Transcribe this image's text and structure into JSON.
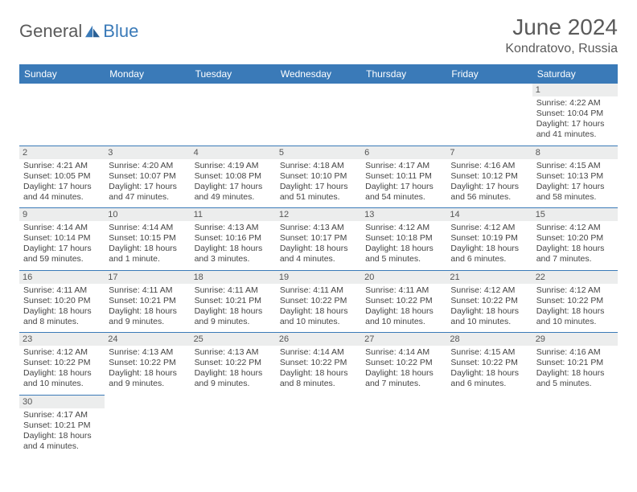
{
  "brand": {
    "part1": "General",
    "part2": "Blue"
  },
  "title": "June 2024",
  "location": "Kondratovo, Russia",
  "colors": {
    "header_bg": "#3a7ab8",
    "header_text": "#ffffff",
    "daynum_bg": "#eceded",
    "border": "#3a7ab8",
    "title_color": "#5a5a5a"
  },
  "weekdays": [
    "Sunday",
    "Monday",
    "Tuesday",
    "Wednesday",
    "Thursday",
    "Friday",
    "Saturday"
  ],
  "weeks": [
    [
      null,
      null,
      null,
      null,
      null,
      null,
      {
        "n": "1",
        "sr": "Sunrise: 4:22 AM",
        "ss": "Sunset: 10:04 PM",
        "dl": "Daylight: 17 hours and 41 minutes."
      }
    ],
    [
      {
        "n": "2",
        "sr": "Sunrise: 4:21 AM",
        "ss": "Sunset: 10:05 PM",
        "dl": "Daylight: 17 hours and 44 minutes."
      },
      {
        "n": "3",
        "sr": "Sunrise: 4:20 AM",
        "ss": "Sunset: 10:07 PM",
        "dl": "Daylight: 17 hours and 47 minutes."
      },
      {
        "n": "4",
        "sr": "Sunrise: 4:19 AM",
        "ss": "Sunset: 10:08 PM",
        "dl": "Daylight: 17 hours and 49 minutes."
      },
      {
        "n": "5",
        "sr": "Sunrise: 4:18 AM",
        "ss": "Sunset: 10:10 PM",
        "dl": "Daylight: 17 hours and 51 minutes."
      },
      {
        "n": "6",
        "sr": "Sunrise: 4:17 AM",
        "ss": "Sunset: 10:11 PM",
        "dl": "Daylight: 17 hours and 54 minutes."
      },
      {
        "n": "7",
        "sr": "Sunrise: 4:16 AM",
        "ss": "Sunset: 10:12 PM",
        "dl": "Daylight: 17 hours and 56 minutes."
      },
      {
        "n": "8",
        "sr": "Sunrise: 4:15 AM",
        "ss": "Sunset: 10:13 PM",
        "dl": "Daylight: 17 hours and 58 minutes."
      }
    ],
    [
      {
        "n": "9",
        "sr": "Sunrise: 4:14 AM",
        "ss": "Sunset: 10:14 PM",
        "dl": "Daylight: 17 hours and 59 minutes."
      },
      {
        "n": "10",
        "sr": "Sunrise: 4:14 AM",
        "ss": "Sunset: 10:15 PM",
        "dl": "Daylight: 18 hours and 1 minute."
      },
      {
        "n": "11",
        "sr": "Sunrise: 4:13 AM",
        "ss": "Sunset: 10:16 PM",
        "dl": "Daylight: 18 hours and 3 minutes."
      },
      {
        "n": "12",
        "sr": "Sunrise: 4:13 AM",
        "ss": "Sunset: 10:17 PM",
        "dl": "Daylight: 18 hours and 4 minutes."
      },
      {
        "n": "13",
        "sr": "Sunrise: 4:12 AM",
        "ss": "Sunset: 10:18 PM",
        "dl": "Daylight: 18 hours and 5 minutes."
      },
      {
        "n": "14",
        "sr": "Sunrise: 4:12 AM",
        "ss": "Sunset: 10:19 PM",
        "dl": "Daylight: 18 hours and 6 minutes."
      },
      {
        "n": "15",
        "sr": "Sunrise: 4:12 AM",
        "ss": "Sunset: 10:20 PM",
        "dl": "Daylight: 18 hours and 7 minutes."
      }
    ],
    [
      {
        "n": "16",
        "sr": "Sunrise: 4:11 AM",
        "ss": "Sunset: 10:20 PM",
        "dl": "Daylight: 18 hours and 8 minutes."
      },
      {
        "n": "17",
        "sr": "Sunrise: 4:11 AM",
        "ss": "Sunset: 10:21 PM",
        "dl": "Daylight: 18 hours and 9 minutes."
      },
      {
        "n": "18",
        "sr": "Sunrise: 4:11 AM",
        "ss": "Sunset: 10:21 PM",
        "dl": "Daylight: 18 hours and 9 minutes."
      },
      {
        "n": "19",
        "sr": "Sunrise: 4:11 AM",
        "ss": "Sunset: 10:22 PM",
        "dl": "Daylight: 18 hours and 10 minutes."
      },
      {
        "n": "20",
        "sr": "Sunrise: 4:11 AM",
        "ss": "Sunset: 10:22 PM",
        "dl": "Daylight: 18 hours and 10 minutes."
      },
      {
        "n": "21",
        "sr": "Sunrise: 4:12 AM",
        "ss": "Sunset: 10:22 PM",
        "dl": "Daylight: 18 hours and 10 minutes."
      },
      {
        "n": "22",
        "sr": "Sunrise: 4:12 AM",
        "ss": "Sunset: 10:22 PM",
        "dl": "Daylight: 18 hours and 10 minutes."
      }
    ],
    [
      {
        "n": "23",
        "sr": "Sunrise: 4:12 AM",
        "ss": "Sunset: 10:22 PM",
        "dl": "Daylight: 18 hours and 10 minutes."
      },
      {
        "n": "24",
        "sr": "Sunrise: 4:13 AM",
        "ss": "Sunset: 10:22 PM",
        "dl": "Daylight: 18 hours and 9 minutes."
      },
      {
        "n": "25",
        "sr": "Sunrise: 4:13 AM",
        "ss": "Sunset: 10:22 PM",
        "dl": "Daylight: 18 hours and 9 minutes."
      },
      {
        "n": "26",
        "sr": "Sunrise: 4:14 AM",
        "ss": "Sunset: 10:22 PM",
        "dl": "Daylight: 18 hours and 8 minutes."
      },
      {
        "n": "27",
        "sr": "Sunrise: 4:14 AM",
        "ss": "Sunset: 10:22 PM",
        "dl": "Daylight: 18 hours and 7 minutes."
      },
      {
        "n": "28",
        "sr": "Sunrise: 4:15 AM",
        "ss": "Sunset: 10:22 PM",
        "dl": "Daylight: 18 hours and 6 minutes."
      },
      {
        "n": "29",
        "sr": "Sunrise: 4:16 AM",
        "ss": "Sunset: 10:21 PM",
        "dl": "Daylight: 18 hours and 5 minutes."
      }
    ],
    [
      {
        "n": "30",
        "sr": "Sunrise: 4:17 AM",
        "ss": "Sunset: 10:21 PM",
        "dl": "Daylight: 18 hours and 4 minutes."
      },
      null,
      null,
      null,
      null,
      null,
      null
    ]
  ]
}
